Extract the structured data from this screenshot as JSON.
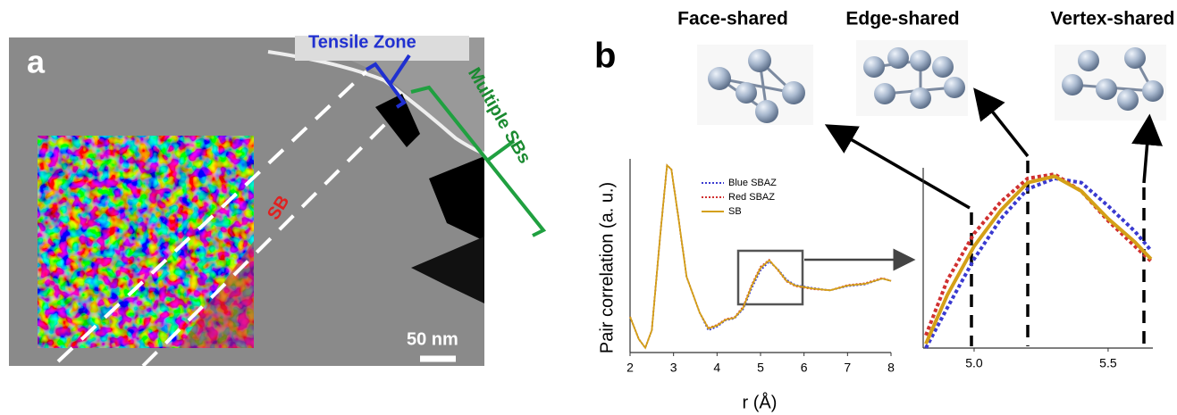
{
  "panel_a": {
    "label": "a",
    "tensile": "Tensile Zone",
    "multiple": "Multiple SBs",
    "sb": "SB",
    "scale": "50 nm"
  },
  "panel_b": {
    "label": "b",
    "structures": [
      "Face-shared",
      "Edge-shared",
      "Vertex-shared"
    ]
  },
  "chart_data": [
    {
      "type": "line",
      "xlabel": "r (Å)",
      "ylabel": "Pair correlation (a. u.)",
      "x": [
        2.0,
        2.2,
        2.35,
        2.5,
        2.7,
        2.85,
        2.95,
        3.1,
        3.3,
        3.6,
        3.8,
        4.0,
        4.2,
        4.4,
        4.6,
        4.8,
        5.0,
        5.2,
        5.4,
        5.6,
        5.8,
        6.2,
        6.6,
        7.0,
        7.4,
        7.8,
        8.0
      ],
      "series": [
        {
          "name": "Blue SBAZ",
          "color": "#3a3ad0",
          "dash": "dotted",
          "values": [
            0.61,
            0.23,
            0.08,
            0.38,
            2.05,
            3.19,
            3.12,
            2.36,
            1.29,
            0.68,
            0.38,
            0.44,
            0.55,
            0.58,
            0.74,
            1.1,
            1.4,
            1.55,
            1.42,
            1.24,
            1.15,
            1.1,
            1.06,
            1.13,
            1.16,
            1.26,
            1.22
          ]
        },
        {
          "name": "Red SBAZ",
          "color": "#d03030",
          "dash": "dotted",
          "values": [
            0.61,
            0.23,
            0.08,
            0.38,
            2.05,
            3.19,
            3.12,
            2.36,
            1.29,
            0.68,
            0.42,
            0.47,
            0.57,
            0.6,
            0.78,
            1.16,
            1.46,
            1.58,
            1.4,
            1.21,
            1.13,
            1.08,
            1.06,
            1.15,
            1.18,
            1.27,
            1.22
          ]
        },
        {
          "name": "SB",
          "color": "#d4a017",
          "dash": "solid",
          "values": [
            0.61,
            0.23,
            0.08,
            0.38,
            2.05,
            3.19,
            3.12,
            2.36,
            1.29,
            0.68,
            0.41,
            0.46,
            0.56,
            0.59,
            0.76,
            1.14,
            1.44,
            1.57,
            1.41,
            1.22,
            1.14,
            1.09,
            1.06,
            1.14,
            1.17,
            1.26,
            1.22
          ]
        }
      ],
      "xlim": [
        2,
        8
      ],
      "ylim": [
        0,
        3.3
      ],
      "xticks": [
        2,
        3,
        4,
        5,
        6,
        7,
        8
      ],
      "legend": true
    },
    {
      "type": "line",
      "x": [
        4.82,
        4.9,
        5.0,
        5.1,
        5.2,
        5.3,
        5.4,
        5.5,
        5.6,
        5.66
      ],
      "series": [
        {
          "name": "Blue SBAZ",
          "color": "#3a3ad0",
          "dash": "dotted",
          "values": [
            0.8,
            0.99,
            1.22,
            1.41,
            1.55,
            1.6,
            1.58,
            1.47,
            1.35,
            1.26
          ]
        },
        {
          "name": "Red SBAZ",
          "color": "#d03030",
          "dash": "dotted",
          "values": [
            0.86,
            1.12,
            1.34,
            1.49,
            1.6,
            1.62,
            1.54,
            1.4,
            1.28,
            1.21
          ]
        },
        {
          "name": "SB",
          "color": "#d4a017",
          "dash": "solid",
          "values": [
            0.82,
            1.05,
            1.28,
            1.45,
            1.58,
            1.61,
            1.54,
            1.41,
            1.3,
            1.22
          ]
        }
      ],
      "xlim": [
        4.81,
        5.667
      ],
      "ylim": [
        0.8,
        1.65
      ],
      "xticks": [
        {
          "value": 5,
          "label": "5.0"
        },
        5.5
      ],
      "legend": false
    }
  ]
}
